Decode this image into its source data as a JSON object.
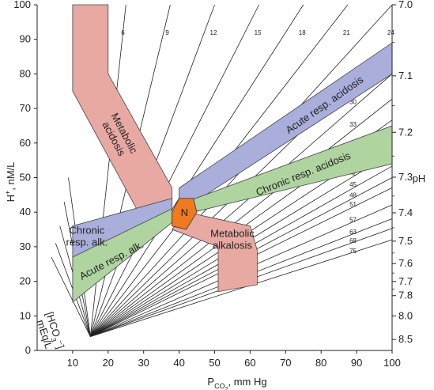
{
  "chart_data": {
    "type": "nomogram",
    "x_label_main": "P",
    "x_label_sub": "CO",
    "x_label_subsub": "2",
    "x_label_rest": ", mm Hg",
    "x_ticks": [
      "10",
      "20",
      "30",
      "40",
      "50",
      "60",
      "70",
      "80",
      "90",
      "100"
    ],
    "x_tick_values": [
      10,
      20,
      30,
      40,
      50,
      60,
      70,
      80,
      90,
      100
    ],
    "xlim": [
      0,
      100
    ],
    "y_left_label_main": "H",
    "y_left_label_sup": "+",
    "y_left_label_rest": ", nM/L",
    "y_left_ticks": [
      "0",
      "10",
      "20",
      "30",
      "40",
      "50",
      "60",
      "70",
      "80",
      "90",
      "100"
    ],
    "y_left_tick_values": [
      0,
      10,
      20,
      30,
      40,
      50,
      60,
      70,
      80,
      90,
      100
    ],
    "ylim": [
      0,
      100
    ],
    "y_right_label": "pH",
    "y_right_ticks": [
      "7.0",
      "7.1",
      "7.2",
      "7.3",
      "7.4",
      "7.5",
      "7.6",
      "7.7",
      "7.8",
      "8.0",
      "8.5"
    ],
    "y_right_tick_values": [
      7.0,
      7.1,
      7.2,
      7.3,
      7.4,
      7.5,
      7.6,
      7.7,
      7.8,
      8.0,
      8.5
    ],
    "hco3_label_line1": "[HCO",
    "hco3_label_sub": "3",
    "hco3_label_close": "⁻]",
    "hco3_label_line2": "mEq/L",
    "isobars_top": [
      6,
      9,
      12,
      15,
      18,
      21,
      24
    ],
    "isobars_right": [
      27,
      30,
      33,
      36,
      39,
      42,
      45,
      48,
      51,
      57,
      63,
      68,
      75
    ],
    "regions": [
      {
        "name": "Metabolic acidosis",
        "lines": [
          "Metabolic",
          "acidosis"
        ],
        "color": "#e8a9a3",
        "polygon": [
          [
            10,
            100
          ],
          [
            20,
            100
          ],
          [
            20,
            80
          ],
          [
            38,
            47
          ],
          [
            38,
            41
          ],
          [
            28,
            41
          ],
          [
            10,
            75
          ]
        ]
      },
      {
        "name": "Acute resp. acidosis",
        "lines": [
          "Acute resp. acidosis"
        ],
        "color": "#a9aedb",
        "polygon": [
          [
            40,
            40
          ],
          [
            40,
            47
          ],
          [
            100,
            89
          ],
          [
            100,
            80
          ]
        ]
      },
      {
        "name": "Chronic resp. acidosis",
        "lines": [
          "Chronic resp. acidosis"
        ],
        "color": "#afd4a0",
        "polygon": [
          [
            40,
            39
          ],
          [
            42,
            43
          ],
          [
            100,
            65
          ],
          [
            100,
            54
          ]
        ]
      },
      {
        "name": "Chronic resp. alk.",
        "lines": [
          "Chronic",
          "resp. alk."
        ],
        "color": "#a9aedb",
        "polygon": [
          [
            10,
            36
          ],
          [
            38,
            44
          ],
          [
            38,
            40
          ],
          [
            10,
            25
          ]
        ]
      },
      {
        "name": "Acute resp. alk.",
        "lines": [
          "Acute resp. alk."
        ],
        "color": "#afd4a0",
        "polygon": [
          [
            10,
            27
          ],
          [
            38,
            41
          ],
          [
            38,
            37
          ],
          [
            10,
            14
          ]
        ]
      },
      {
        "name": "Metabolic alkalosis",
        "lines": [
          "Metabolic",
          "alkalosis"
        ],
        "color": "#e8a9a3",
        "polygon": [
          [
            42,
            40
          ],
          [
            60,
            36
          ],
          [
            62,
            29
          ],
          [
            62,
            19
          ],
          [
            51,
            17
          ],
          [
            51,
            30
          ],
          [
            38,
            35
          ]
        ]
      }
    ],
    "normal": {
      "label": "N",
      "color": "#f07a20",
      "polygon": [
        [
          38,
          40
        ],
        [
          40,
          44
        ],
        [
          44,
          44
        ],
        [
          45,
          40
        ],
        [
          42,
          35
        ],
        [
          38,
          36
        ]
      ]
    }
  }
}
